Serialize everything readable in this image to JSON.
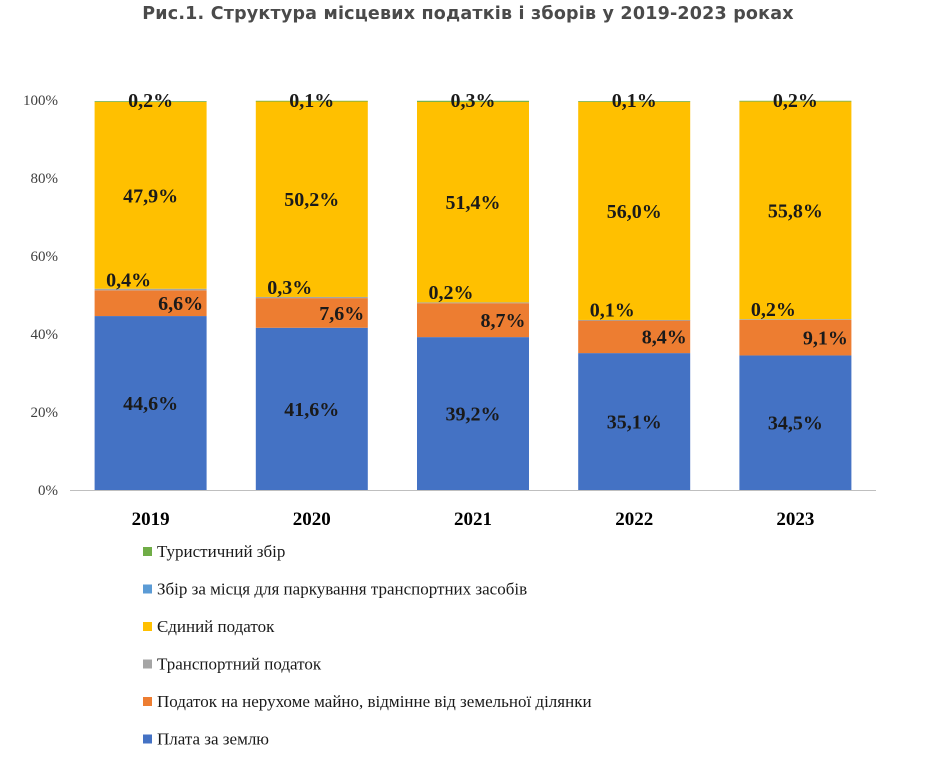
{
  "chart_data": {
    "type": "stacked-bar",
    "title": "Рис.1. Структура місцевих податків і зборів у 2019-2023 роках",
    "categories": [
      "2019",
      "2020",
      "2021",
      "2022",
      "2023"
    ],
    "ylim": [
      0,
      100
    ],
    "yticks": [
      "0%",
      "20%",
      "40%",
      "60%",
      "80%",
      "100%"
    ],
    "series": [
      {
        "name": "Плата за землю",
        "color": "#4472C4",
        "values": [
          44.6,
          41.6,
          39.2,
          35.1,
          34.5
        ],
        "labels": [
          "44,6%",
          "41,6%",
          "39,2%",
          "35,1%",
          "34,5%"
        ]
      },
      {
        "name": "Податок на нерухоме майно, відмінне від земельної ділянки",
        "color": "#ED7D31",
        "values": [
          6.6,
          7.6,
          8.7,
          8.4,
          9.1
        ],
        "labels": [
          "6,6%",
          "7,6%",
          "8,7%",
          "8,4%",
          "9,1%"
        ]
      },
      {
        "name": "Транспортний податок",
        "color": "#A5A5A5",
        "values": [
          0.4,
          0.3,
          0.2,
          0.1,
          0.2
        ],
        "labels": [
          "0,4%",
          "0,3%",
          "0,2%",
          "0,1%",
          "0,2%"
        ]
      },
      {
        "name": "Єдиний податок",
        "color": "#FFC000",
        "values": [
          47.9,
          50.2,
          51.4,
          56.0,
          55.8
        ],
        "labels": [
          "47,9%",
          "50,2%",
          "51,4%",
          "56,0%",
          "55,8%"
        ]
      },
      {
        "name": "Збір за місця для паркування транспортних засобів",
        "color": "#5B9BD5",
        "values": [
          0.0,
          0.0,
          0.0,
          0.0,
          0.0
        ],
        "labels": []
      },
      {
        "name": "Туристичний збір",
        "color": "#70AD47",
        "values": [
          0.2,
          0.1,
          0.3,
          0.1,
          0.2
        ],
        "labels": [
          "0,2%",
          "0,1%",
          "0,3%",
          "0,1%",
          "0,2%"
        ]
      }
    ],
    "legend_order": [
      "Туристичний збір",
      "Збір за місця для паркування транспортних засобів",
      "Єдиний податок",
      "Транспортний податок",
      "Податок на нерухоме майно, відмінне від земельної ділянки",
      "Плата за землю"
    ],
    "grid": false,
    "legend_position": "bottom-left"
  }
}
